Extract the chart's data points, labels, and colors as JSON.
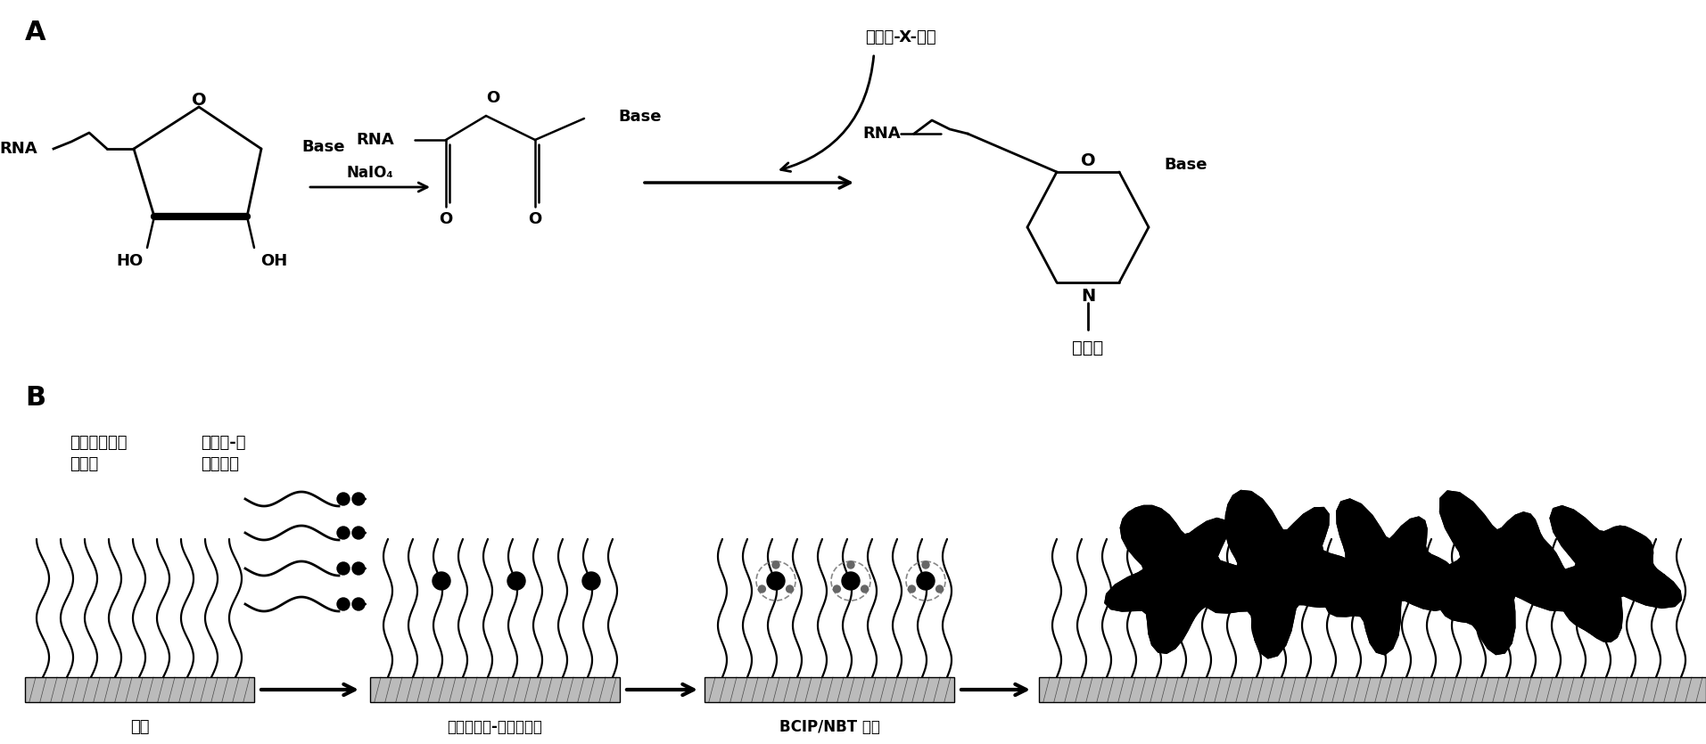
{
  "panel_A_label": "A",
  "panel_B_label": "B",
  "bg_color": "#ffffff",
  "text_color": "#000000",
  "reagent_arrow": "NaIO₄",
  "biotin_x_hydrazide": "生物素-X-酰肼",
  "biotin_label": "生物素",
  "rna_label": "RNA",
  "base_label": "Base",
  "ho_label": "HO",
  "oh_label": "OH",
  "o_label": "O",
  "n_label": "N",
  "label1": "寁核苷酸探针",
  "label2": "生物素-标\n记的样品",
  "label3": "杂交",
  "label4": "锁霞亲和素-碱性磷酸酶",
  "label5": "BCIP/NBT 处理"
}
